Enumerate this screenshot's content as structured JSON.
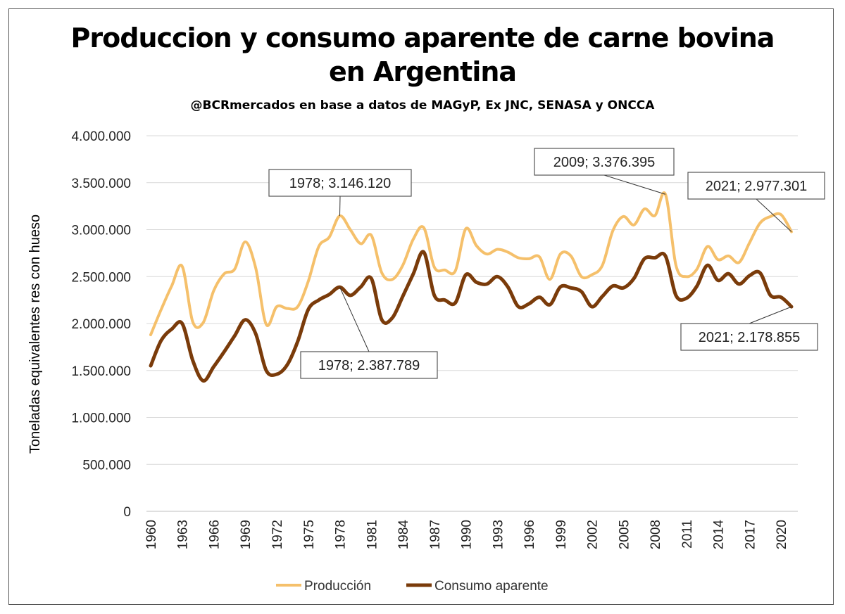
{
  "chart_data": {
    "type": "line",
    "title_line1": "Produccion y consumo aparente de carne bovina",
    "title_line2": "en Argentina",
    "subtitle": "@BCRmercados  en base a datos de MAGyP,  Ex JNC, SENASA y ONCCA",
    "ylabel": "Toneladas equivalentes  res con hueso",
    "xlabel": "",
    "ylim": [
      0,
      4000000
    ],
    "y_ticks": [
      0,
      500000,
      1000000,
      1500000,
      2000000,
      2500000,
      3000000,
      3500000,
      4000000
    ],
    "y_tick_labels": [
      "0",
      "500.000",
      "1.000.000",
      "1.500.000",
      "2.000.000",
      "2.500.000",
      "3.000.000",
      "3.500.000",
      "4.000.000"
    ],
    "x_tick_labels": [
      "1960",
      "1963",
      "1966",
      "1969",
      "1972",
      "1975",
      "1978",
      "1981",
      "1984",
      "1987",
      "1990",
      "1993",
      "1996",
      "1999",
      "2002",
      "2005",
      "2008",
      "2011",
      "2014",
      "2017",
      "2020"
    ],
    "grid": true,
    "legend_position": "bottom",
    "x": [
      1960,
      1961,
      1962,
      1963,
      1964,
      1965,
      1966,
      1967,
      1968,
      1969,
      1970,
      1971,
      1972,
      1973,
      1974,
      1975,
      1976,
      1977,
      1978,
      1979,
      1980,
      1981,
      1982,
      1983,
      1984,
      1985,
      1986,
      1987,
      1988,
      1989,
      1990,
      1991,
      1992,
      1993,
      1994,
      1995,
      1996,
      1997,
      1998,
      1999,
      2000,
      2001,
      2002,
      2003,
      2004,
      2005,
      2006,
      2007,
      2008,
      2009,
      2010,
      2011,
      2012,
      2013,
      2014,
      2015,
      2016,
      2017,
      2018,
      2019,
      2020,
      2021
    ],
    "series": [
      {
        "name": "Producción",
        "color": "#F5C06B",
        "values": [
          1880000,
          2150000,
          2400000,
          2610000,
          2020000,
          2010000,
          2350000,
          2530000,
          2580000,
          2870000,
          2590000,
          1990000,
          2180000,
          2160000,
          2180000,
          2450000,
          2820000,
          2920000,
          3146120,
          3000000,
          2850000,
          2940000,
          2540000,
          2470000,
          2620000,
          2900000,
          3020000,
          2600000,
          2570000,
          2560000,
          3010000,
          2830000,
          2740000,
          2790000,
          2760000,
          2700000,
          2690000,
          2710000,
          2470000,
          2740000,
          2720000,
          2500000,
          2520000,
          2620000,
          2990000,
          3140000,
          3050000,
          3220000,
          3150000,
          3376395,
          2620000,
          2500000,
          2580000,
          2820000,
          2680000,
          2720000,
          2650000,
          2860000,
          3070000,
          3140000,
          3160000,
          2977301
        ]
      },
      {
        "name": "Consumo aparente",
        "color": "#7A3B0A",
        "values": [
          1550000,
          1820000,
          1940000,
          2000000,
          1610000,
          1390000,
          1540000,
          1700000,
          1870000,
          2040000,
          1890000,
          1500000,
          1460000,
          1560000,
          1810000,
          2150000,
          2250000,
          2310000,
          2387789,
          2300000,
          2390000,
          2480000,
          2040000,
          2060000,
          2290000,
          2530000,
          2760000,
          2300000,
          2250000,
          2220000,
          2520000,
          2440000,
          2420000,
          2500000,
          2390000,
          2180000,
          2210000,
          2280000,
          2200000,
          2390000,
          2380000,
          2340000,
          2180000,
          2290000,
          2400000,
          2380000,
          2480000,
          2690000,
          2700000,
          2720000,
          2300000,
          2270000,
          2400000,
          2620000,
          2460000,
          2530000,
          2420000,
          2510000,
          2540000,
          2300000,
          2280000,
          2178855
        ]
      }
    ],
    "annotations": [
      {
        "text": "1978; 3.146.120",
        "series": 0,
        "x": 1978,
        "y": 3146120
      },
      {
        "text": "2009; 3.376.395",
        "series": 0,
        "x": 2009,
        "y": 3376395
      },
      {
        "text": "2021; 2.977.301",
        "series": 0,
        "x": 2021,
        "y": 2977301
      },
      {
        "text": "1978; 2.387.789",
        "series": 1,
        "x": 1978,
        "y": 2387789
      },
      {
        "text": "2021; 2.178.855",
        "series": 1,
        "x": 2021,
        "y": 2178855
      }
    ]
  }
}
